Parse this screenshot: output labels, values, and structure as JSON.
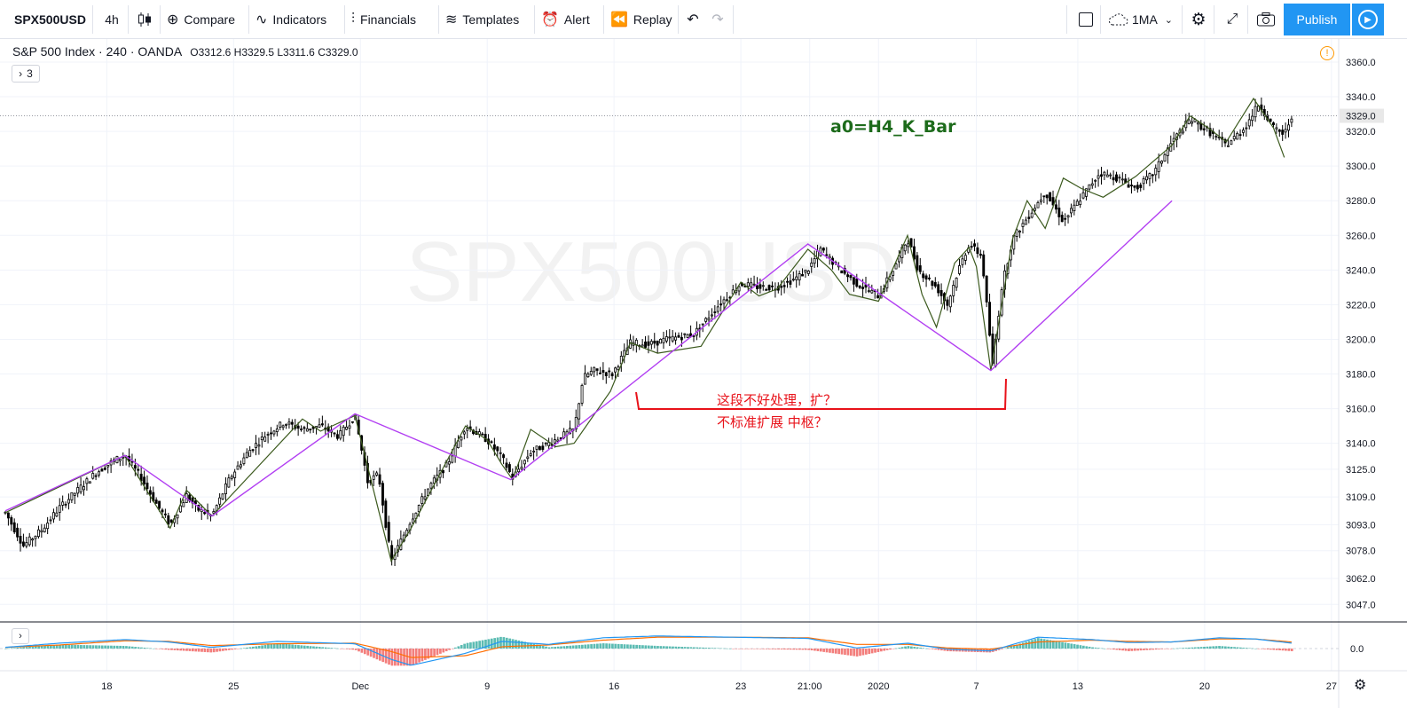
{
  "toolbar": {
    "symbol": "SPX500USD",
    "interval": "4h",
    "compare": "Compare",
    "indicators": "Indicators",
    "financials": "Financials",
    "templates": "Templates",
    "alert": "Alert",
    "replay": "Replay",
    "ma_label": "1MA",
    "publish": "Publish",
    "icons": [
      "candles-icon",
      "plus-circle-icon",
      "indicators-icon",
      "financials-icon",
      "templates-icon",
      "alarm-clock-icon",
      "replay-icon",
      "undo-icon",
      "redo-icon",
      "square-icon",
      "cloud-icon",
      "gear-icon",
      "fullscreen-icon",
      "camera-icon",
      "play-icon"
    ]
  },
  "legend": {
    "title": "S&P 500 Index · 240 · OANDA",
    "ohlc": "O3312.6 H3329.5 L3311.6 C3329.0",
    "study_count": "3"
  },
  "colors": {
    "up": "#ffffff",
    "down": "#000000",
    "wick": "#000000",
    "zigzag_h4": "#3c5a1e",
    "zigzag_segment": "#b23ff2",
    "annotation_red": "#e8121a",
    "label_green": "#1d6b1b",
    "macd_line": "#2196f3",
    "signal_line": "#ff6d00",
    "hist_up": "#26a69a",
    "hist_down": "#ef5350",
    "grid": "#f0f3fa",
    "watermark": "#f2f2f2",
    "publish": "#2196f3"
  },
  "chart_data": {
    "type": "candlestick",
    "symbol": "SPX500USD",
    "timeframe": "240",
    "source": "OANDA",
    "y_axis": {
      "ticks": [
        3047.0,
        3062.0,
        3078.0,
        3093.0,
        3109.0,
        3125.0,
        3140.0,
        3160.0,
        3180.0,
        3200.0,
        3220.0,
        3240.0,
        3260.0,
        3280.0,
        3300.0,
        3320.0,
        3340.0,
        3360.0
      ],
      "tick_labels": [
        "3047.0",
        "3062.0",
        "3078.0",
        "3093.0",
        "3109.0",
        "3125.0",
        "3140.0",
        "3160.0",
        "3180.0",
        "3200.0",
        "3220.0",
        "3240.0",
        "3260.0",
        "3280.0",
        "3300.0",
        "3320.0",
        "3340.0",
        "3360.0"
      ],
      "last_price": 3329.0,
      "last_price_label": "3329.0"
    },
    "x_axis": {
      "ticks": [
        {
          "label": "18",
          "t": 5.6
        },
        {
          "label": "25",
          "t": 12.6
        },
        {
          "label": "Dec",
          "t": 19.6
        },
        {
          "label": "9",
          "t": 26.6
        },
        {
          "label": "16",
          "t": 33.6
        },
        {
          "label": "23",
          "t": 40.6
        },
        {
          "label": "21:00",
          "t": 44.4
        },
        {
          "label": "2020",
          "t": 48.2
        },
        {
          "label": "7",
          "t": 53.6
        },
        {
          "label": "13",
          "t": 59.2
        },
        {
          "label": "20",
          "t": 66.2
        },
        {
          "label": "27",
          "t": 73.2
        }
      ],
      "range": [
        0,
        73.6
      ],
      "last_bar_t": 71.0
    },
    "price_path": [
      [
        0,
        3100
      ],
      [
        1,
        3081
      ],
      [
        2,
        3090
      ],
      [
        3,
        3103
      ],
      [
        4,
        3113
      ],
      [
        5,
        3123
      ],
      [
        6,
        3130
      ],
      [
        6.6,
        3133
      ],
      [
        7.5,
        3120
      ],
      [
        8.4,
        3104
      ],
      [
        9.1,
        3093
      ],
      [
        10,
        3110
      ],
      [
        10.6,
        3102
      ],
      [
        11.4,
        3098
      ],
      [
        12.4,
        3120
      ],
      [
        13.4,
        3135
      ],
      [
        14.4,
        3145
      ],
      [
        15.4,
        3152
      ],
      [
        16.4,
        3148
      ],
      [
        17.4,
        3150
      ],
      [
        18.4,
        3144
      ],
      [
        19.3,
        3156
      ],
      [
        20.0,
        3118
      ],
      [
        20.6,
        3122
      ],
      [
        21.3,
        3072
      ],
      [
        22.4,
        3096
      ],
      [
        23.4,
        3115
      ],
      [
        24.4,
        3128
      ],
      [
        25.4,
        3150
      ],
      [
        26.6,
        3142
      ],
      [
        27.4,
        3132
      ],
      [
        28.0,
        3120
      ],
      [
        29.0,
        3135
      ],
      [
        30.0,
        3140
      ],
      [
        31.4,
        3148
      ],
      [
        31.9,
        3178
      ],
      [
        32.5,
        3182
      ],
      [
        33.5,
        3180
      ],
      [
        34.5,
        3198
      ],
      [
        35.5,
        3197
      ],
      [
        36.5,
        3200
      ],
      [
        38.0,
        3203
      ],
      [
        39.4,
        3220
      ],
      [
        40.6,
        3232
      ],
      [
        41.6,
        3230
      ],
      [
        42.6,
        3230
      ],
      [
        43.6,
        3235
      ],
      [
        44.3,
        3240
      ],
      [
        45.0,
        3252
      ],
      [
        46.0,
        3241
      ],
      [
        47.0,
        3232
      ],
      [
        48.2,
        3225
      ],
      [
        49.0,
        3240
      ],
      [
        49.8,
        3258
      ],
      [
        50.4,
        3240
      ],
      [
        51.4,
        3230
      ],
      [
        52.0,
        3220
      ],
      [
        52.6,
        3240
      ],
      [
        53.2,
        3255
      ],
      [
        53.9,
        3248
      ],
      [
        54.5,
        3185
      ],
      [
        55.0,
        3230
      ],
      [
        55.6,
        3258
      ],
      [
        56.4,
        3270
      ],
      [
        57.4,
        3285
      ],
      [
        58.4,
        3268
      ],
      [
        59.4,
        3282
      ],
      [
        60.4,
        3296
      ],
      [
        61.4,
        3293
      ],
      [
        62.4,
        3287
      ],
      [
        63.4,
        3296
      ],
      [
        64.4,
        3314
      ],
      [
        65.4,
        3327
      ],
      [
        66.4,
        3320
      ],
      [
        67.4,
        3312
      ],
      [
        68.4,
        3322
      ],
      [
        69.2,
        3336
      ],
      [
        70.0,
        3322
      ],
      [
        70.6,
        3318
      ],
      [
        71.0,
        3329
      ]
    ],
    "zigzag_h4": [
      [
        0.0,
        3100
      ],
      [
        6.6,
        3133
      ],
      [
        9.1,
        3091
      ],
      [
        10.0,
        3113
      ],
      [
        11.4,
        3098
      ],
      [
        16.4,
        3154
      ],
      [
        17.4,
        3147
      ],
      [
        19.3,
        3156
      ],
      [
        21.3,
        3072
      ],
      [
        22.4,
        3091
      ],
      [
        25.4,
        3150
      ],
      [
        26.6,
        3142
      ],
      [
        27.4,
        3128
      ],
      [
        28.0,
        3119
      ],
      [
        29.0,
        3148
      ],
      [
        30.4,
        3138
      ],
      [
        31.4,
        3140
      ],
      [
        33.4,
        3170
      ],
      [
        34.5,
        3198
      ],
      [
        36.0,
        3192
      ],
      [
        38.4,
        3196
      ],
      [
        40.6,
        3233
      ],
      [
        41.6,
        3225
      ],
      [
        42.6,
        3229
      ],
      [
        44.3,
        3252
      ],
      [
        45.6,
        3240
      ],
      [
        46.6,
        3226
      ],
      [
        48.2,
        3222
      ],
      [
        49.8,
        3260
      ],
      [
        50.6,
        3226
      ],
      [
        51.4,
        3207
      ],
      [
        52.4,
        3244
      ],
      [
        53.2,
        3253
      ],
      [
        53.6,
        3242
      ],
      [
        54.4,
        3182
      ],
      [
        55.6,
        3258
      ],
      [
        56.4,
        3280
      ],
      [
        57.4,
        3264
      ],
      [
        58.4,
        3293
      ],
      [
        59.4,
        3287
      ],
      [
        60.6,
        3282
      ],
      [
        62.4,
        3294
      ],
      [
        64.4,
        3312
      ],
      [
        65.4,
        3329
      ],
      [
        66.4,
        3322
      ],
      [
        67.4,
        3314
      ],
      [
        68.9,
        3339
      ],
      [
        70.0,
        3322
      ],
      [
        70.6,
        3305
      ]
    ],
    "zigzag_segment": [
      [
        0.0,
        3101
      ],
      [
        6.6,
        3133
      ],
      [
        11.4,
        3098
      ],
      [
        19.3,
        3157
      ],
      [
        27.9,
        3119
      ],
      [
        44.3,
        3255
      ],
      [
        54.4,
        3182
      ],
      [
        64.4,
        3280
      ]
    ],
    "annotations": {
      "label": "a0=H4_K_Bar",
      "note_line1": "这段不好处理，扩？",
      "note_line2": "不标准扩展 中枢？"
    },
    "oscillator": {
      "type": "MACD",
      "zero_label": "0.0",
      "macd": [
        [
          0,
          0.1
        ],
        [
          3,
          0.45
        ],
        [
          6.6,
          0.75
        ],
        [
          9,
          0.55
        ],
        [
          11.4,
          0.1
        ],
        [
          15,
          0.6
        ],
        [
          19.3,
          0.4
        ],
        [
          21.3,
          -0.9
        ],
        [
          22.4,
          -1.4
        ],
        [
          25.4,
          -0.4
        ],
        [
          27.4,
          0.6
        ],
        [
          30,
          0.35
        ],
        [
          33,
          0.9
        ],
        [
          36,
          1.05
        ],
        [
          40,
          0.95
        ],
        [
          44.3,
          0.85
        ],
        [
          47,
          0.05
        ],
        [
          49.8,
          0.45
        ],
        [
          52,
          -0.05
        ],
        [
          54.4,
          -0.2
        ],
        [
          57,
          0.95
        ],
        [
          60,
          0.75
        ],
        [
          62,
          0.5
        ],
        [
          64.4,
          0.55
        ],
        [
          67,
          0.9
        ],
        [
          69,
          0.8
        ],
        [
          71,
          0.45
        ]
      ],
      "signal": [
        [
          0,
          0.1
        ],
        [
          3,
          0.3
        ],
        [
          6.6,
          0.65
        ],
        [
          9,
          0.6
        ],
        [
          11.4,
          0.25
        ],
        [
          15,
          0.4
        ],
        [
          19.3,
          0.45
        ],
        [
          21.3,
          -0.25
        ],
        [
          22.4,
          -0.75
        ],
        [
          25.4,
          -0.6
        ],
        [
          27.4,
          0.15
        ],
        [
          30,
          0.3
        ],
        [
          33,
          0.7
        ],
        [
          36,
          0.95
        ],
        [
          40,
          0.95
        ],
        [
          44.3,
          0.9
        ],
        [
          47,
          0.35
        ],
        [
          49.8,
          0.35
        ],
        [
          52,
          0.05
        ],
        [
          54.4,
          -0.05
        ],
        [
          57,
          0.55
        ],
        [
          60,
          0.7
        ],
        [
          62,
          0.6
        ],
        [
          64.4,
          0.55
        ],
        [
          67,
          0.8
        ],
        [
          69,
          0.8
        ],
        [
          71,
          0.55
        ]
      ]
    }
  }
}
